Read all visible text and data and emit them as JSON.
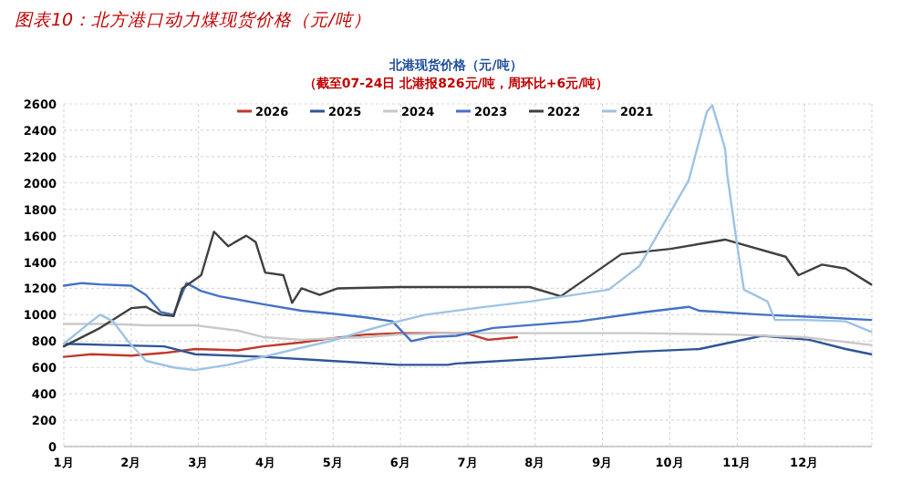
{
  "chart_data": {
    "type": "line",
    "title": "图表10：北方港口动力煤现货价格（元/吨）",
    "subtitle": "北港现货价格（元/吨）",
    "annotations": [
      "（截至07-24日 北港报826元/吨，周环比+6元/吨）"
    ],
    "xlim": [
      1,
      13
    ],
    "xticks": [
      {
        "value": 1,
        "label": "1月"
      },
      {
        "value": 2,
        "label": "2月"
      },
      {
        "value": 3,
        "label": "3月"
      },
      {
        "value": 4,
        "label": "4月"
      },
      {
        "value": 5,
        "label": "5月"
      },
      {
        "value": 6,
        "label": "6月"
      },
      {
        "value": 7,
        "label": "7月"
      },
      {
        "value": 8,
        "label": "8月"
      },
      {
        "value": 9,
        "label": "9月"
      },
      {
        "value": 10,
        "label": "10月"
      },
      {
        "value": 11,
        "label": "11月"
      },
      {
        "value": 12,
        "label": "12月"
      },
      {
        "value": 13,
        "label": null
      }
    ],
    "ylim": [
      0,
      2600
    ],
    "yticks": [
      0,
      200,
      400,
      600,
      800,
      1000,
      1200,
      1400,
      1600,
      1800,
      2000,
      2200,
      2400,
      2600
    ],
    "grid": true,
    "legend": "top",
    "series": [
      {
        "name": "2026",
        "color": "#c0392b",
        "x": [
          1.0,
          1.41,
          2.0,
          2.49,
          2.95,
          3.58,
          3.96,
          4.53,
          4.96,
          5.48,
          5.97,
          6.56,
          6.97,
          7.3,
          7.73
        ],
        "values": [
          680,
          700,
          690,
          710,
          740,
          730,
          760,
          790,
          820,
          850,
          860,
          860,
          860,
          810,
          830
        ]
      },
      {
        "name": "2025",
        "color": "#2f5597",
        "x": [
          1.0,
          1.68,
          2.49,
          2.95,
          3.96,
          4.96,
          5.97,
          6.7,
          6.83,
          8.19,
          9.55,
          10.44,
          11.37,
          12.07,
          12.61,
          12.99
        ],
        "values": [
          780,
          770,
          760,
          700,
          680,
          650,
          620,
          620,
          630,
          670,
          720,
          740,
          840,
          810,
          740,
          700
        ]
      },
      {
        "name": "2024",
        "color": "#c9c9c9",
        "x": [
          1.0,
          1.68,
          2.22,
          2.95,
          3.58,
          3.96,
          4.53,
          4.96,
          5.48,
          5.97,
          6.83,
          8.19,
          9.55,
          10.91,
          11.99,
          12.99
        ],
        "values": [
          930,
          930,
          920,
          920,
          880,
          830,
          810,
          820,
          830,
          850,
          860,
          860,
          860,
          850,
          830,
          770
        ]
      },
      {
        "name": "2023",
        "color": "#4472c4",
        "x": [
          1.0,
          1.27,
          1.54,
          2.0,
          2.22,
          2.44,
          2.63,
          2.82,
          3.04,
          3.31,
          3.96,
          4.53,
          4.96,
          5.48,
          5.88,
          6.16,
          6.43,
          6.83,
          7.38,
          8.65,
          9.63,
          10.28,
          10.44,
          11.37,
          12.26,
          12.99
        ],
        "values": [
          1220,
          1240,
          1230,
          1220,
          1150,
          1020,
          1000,
          1240,
          1180,
          1140,
          1080,
          1030,
          1010,
          980,
          950,
          800,
          830,
          840,
          900,
          950,
          1020,
          1060,
          1030,
          1000,
          980,
          960
        ]
      },
      {
        "name": "2022",
        "color": "#404040",
        "x": [
          1.0,
          1.54,
          2.0,
          2.22,
          2.44,
          2.63,
          2.76,
          3.04,
          3.23,
          3.44,
          3.71,
          3.85,
          3.99,
          4.26,
          4.39,
          4.53,
          4.8,
          5.07,
          5.97,
          6.83,
          7.92,
          8.38,
          9.28,
          10.01,
          10.82,
          11.72,
          11.91,
          12.26,
          12.61,
          12.99
        ],
        "values": [
          760,
          900,
          1050,
          1060,
          1000,
          990,
          1200,
          1300,
          1630,
          1520,
          1600,
          1550,
          1320,
          1300,
          1090,
          1200,
          1150,
          1200,
          1210,
          1210,
          1210,
          1140,
          1460,
          1500,
          1570,
          1440,
          1300,
          1380,
          1350,
          1230
        ]
      },
      {
        "name": "2021",
        "color": "#9dc3e6",
        "x": [
          1.0,
          1.41,
          1.54,
          1.73,
          1.95,
          2.22,
          2.63,
          2.95,
          3.44,
          3.96,
          4.53,
          4.96,
          5.48,
          5.97,
          6.37,
          7.11,
          7.92,
          9.09,
          9.55,
          10.28,
          10.55,
          10.63,
          10.82,
          10.85,
          10.99,
          11.1,
          11.45,
          11.56,
          11.99,
          12.61,
          12.99
        ],
        "values": [
          780,
          950,
          1000,
          950,
          800,
          650,
          600,
          580,
          620,
          680,
          750,
          800,
          880,
          950,
          1000,
          1050,
          1100,
          1190,
          1370,
          2020,
          2540,
          2590,
          2260,
          2070,
          1560,
          1190,
          1100,
          960,
          960,
          950,
          870
        ]
      }
    ]
  }
}
